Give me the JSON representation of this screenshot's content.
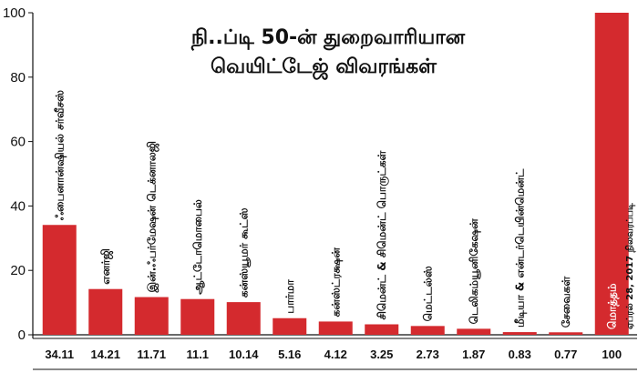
{
  "chart_data": {
    "type": "bar",
    "title_line1": "நி..ப்டி 50-ன் துறைவாரியான",
    "title_line2": "வெயிட்டேஜ் விவரங்கள்",
    "note": "ஏப்ரல் 28, 2017 நிலவரப்படி",
    "categories": [
      "ஃபைனான்ஷியல் சர்வீசஸ்",
      "எனர்ஜி",
      "இன்.ஃபர்மேஷன் டெக்னாலஜி",
      "ஆட்டோமொபைல்",
      "கன்ஸ்யூமர் கூட்ஸ்",
      "பார்மா",
      "கன்ஸ்ட்ரக்ஷன்",
      "சிமென்ட் & சிமென்ட் பொருட்கள்",
      "மெட்டல்ஸ்",
      "டெலிகம்யூனிகேஷன்",
      "மீடியா & என்டர்டெயின்மென்ட்",
      "சேவைகள்",
      "மொத்தம்"
    ],
    "values": [
      34.11,
      14.21,
      11.71,
      11.1,
      10.14,
      5.16,
      4.12,
      3.25,
      2.73,
      1.87,
      0.83,
      0.77,
      100
    ],
    "value_labels": [
      "34.11",
      "14.21",
      "11.71",
      "11.1",
      "10.14",
      "5.16",
      "4.12",
      "3.25",
      "2.73",
      "1.87",
      "0.83",
      "0.77",
      "100"
    ],
    "y_ticks": [
      "0",
      "20",
      "40",
      "60",
      "80",
      "100"
    ],
    "ylim": [
      0,
      100
    ],
    "xlabel": "",
    "ylabel": "",
    "bar_color": "#d42a2e",
    "grid": false
  }
}
